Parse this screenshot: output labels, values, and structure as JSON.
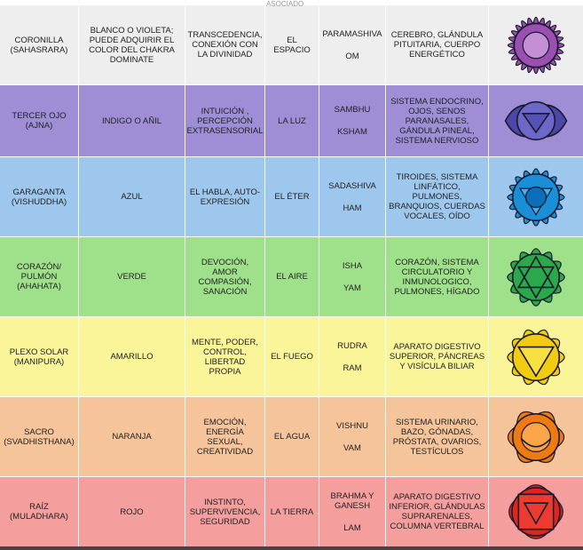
{
  "top_cut_text": "ASOCIADO",
  "rows": [
    {
      "bg": "#eeeeee",
      "chakra": "CORONILLA (SAHASRARA)",
      "color": "BLANCO O VIOLETA; PUEDE ADQUIRIR EL COLOR DEL CHAKRA DOMINATE",
      "aspect": "TRANSCEDENCIA, CONEXIÓN CON LA DIVINIDAD",
      "element": "EL ESPACIO",
      "deity": "PARAMASHIVA",
      "mantra": "OM",
      "body": "CEREBRO, GLÁNDULA PITUITARIA, CUERPO ENERGÉTICO",
      "icon": "crown-chakra-icon",
      "iconColor": "#9b4fb0"
    },
    {
      "bg": "#9f8ed6",
      "chakra": "TERCER OJO (AJNA)",
      "color": "INDIGO O AÑIL",
      "aspect": "INTUICIÓN , PERCEPCIÓN EXTRASENSORIAL",
      "element": "LA LUZ",
      "deity": "SAMBHU",
      "mantra": "KSHAM",
      "body": "SISTEMA ENDOCRINO, OJOS, SENOS PARANASALES, GÁNDULA PINEAL, SISTEMA NERVIOSO",
      "icon": "third-eye-chakra-icon",
      "iconColor": "#4b46a8"
    },
    {
      "bg": "#9ec7ee",
      "chakra": "GARAGANTA (VISHUDDHA)",
      "color": "AZUL",
      "aspect": "EL HABLA, AUTO-EXPRESIÓN",
      "element": "EL ÉTER",
      "deity": "SADASHIVA",
      "mantra": "HAM",
      "body": "TIROIDES, SISTEMA LINFÁTICO, PULMONES, BRANQUIOS, CUERDAS VOCALES, OÍDO",
      "icon": "throat-chakra-icon",
      "iconColor": "#1a8fd8"
    },
    {
      "bg": "#9fe08a",
      "chakra": "CORAZÓN/ PULMÓN (AHAHATA)",
      "color": "VERDE",
      "aspect": "DEVOCIÓN, AMOR COMPASIÓN, SANACIÓN",
      "element": "EL AIRE",
      "deity": "ISHA",
      "mantra": "YAM",
      "body": "CORAZÓN, SISTEMA CIRCULATORIO Y INMUNOLOGICO, PULMONES, HÍGADO",
      "icon": "heart-chakra-icon",
      "iconColor": "#2aa84a"
    },
    {
      "bg": "#fbf59a",
      "chakra": "PLEXO SOLAR (MANIPURA)",
      "color": "AMARILLO",
      "aspect": "MENTE, PODER, CONTROL, LIBERTAD PROPIA",
      "element": "EL FUEGO",
      "deity": "RUDRA",
      "mantra": "RAM",
      "body": "APARATO DIGESTIVO SUPERIOR, PÁNCREAS Y VISÍCULA BILIAR",
      "icon": "solar-plexus-chakra-icon",
      "iconColor": "#f2cc10"
    },
    {
      "bg": "#f5c49a",
      "chakra": "SACRO (SVADHISTHANA)",
      "color": "NARANJA",
      "aspect": "EMOCIÓN, ENERGÍA SEXUAL, CREATIVIDAD",
      "element": "EL AGUA",
      "deity": "VISHNU",
      "mantra": "VAM",
      "body": "SISTEMA URINARIO, BAZO, GÓNADAS, PRÓSTATA, OVARIOS, TESTÍCULOS",
      "icon": "sacral-chakra-icon",
      "iconColor": "#f07a12"
    },
    {
      "bg": "#f49e9e",
      "chakra": "RAÍZ (MULADHARA)",
      "color": "ROJO",
      "aspect": "INSTINTO, SUPERVIVENCIA, SEGURIDAD",
      "element": "LA TIERRA",
      "deity": "BRAHMA Y GANESH",
      "mantra": "LAM",
      "body": "APARATO DIGESTIVO INFERIOR, GLÁNDULAS SUPRARENALES, COLUMNA VERTEBRAL",
      "icon": "root-chakra-icon",
      "iconColor": "#e0261c"
    }
  ]
}
